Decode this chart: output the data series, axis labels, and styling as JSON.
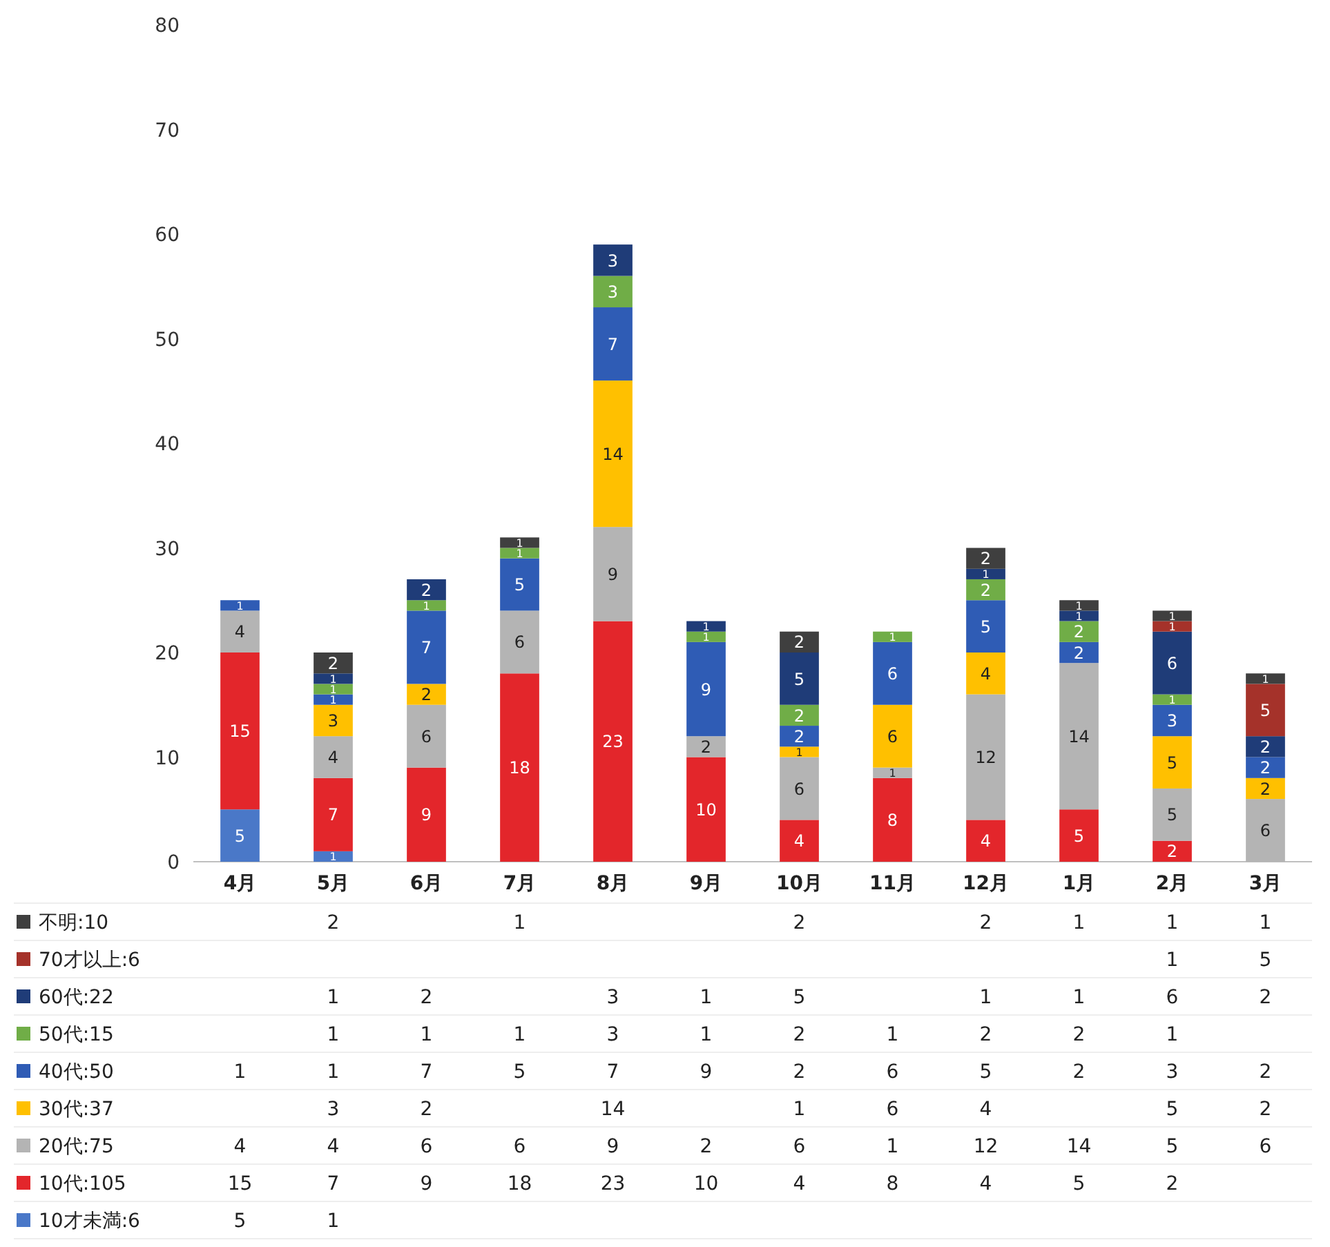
{
  "chart_data": [
    {
      "type": "bar",
      "stacked": true,
      "grid": false,
      "ylim": [
        0,
        80
      ],
      "yticks": [
        0,
        10,
        20,
        30,
        40,
        50,
        60,
        70,
        80
      ],
      "categories": [
        "4月",
        "5月",
        "6月",
        "7月",
        "8月",
        "9月",
        "10月",
        "11月",
        "12月",
        "1月",
        "2月",
        "3月"
      ],
      "series": [
        {
          "color": "#4a78c8",
          "values": [
            5,
            1,
            null,
            null,
            null,
            null,
            null,
            null,
            null,
            null,
            null,
            null
          ],
          "value_labels": [
            "5",
            "1",
            null,
            null,
            null,
            null,
            null,
            null,
            null,
            null,
            null,
            null
          ]
        },
        {
          "color": "#e3262b",
          "values": [
            15,
            7,
            9,
            18,
            23,
            10,
            4,
            8,
            4,
            5,
            2,
            null
          ],
          "value_labels": [
            "15",
            "7",
            "9",
            "18",
            "23",
            "10",
            "4",
            "8",
            "4",
            "5",
            "2",
            null
          ]
        },
        {
          "color": "#b4b4b4",
          "values": [
            4,
            4,
            6,
            6,
            9,
            2,
            6,
            1,
            12,
            14,
            5,
            6
          ],
          "value_labels": [
            "4",
            "4",
            "6",
            "6",
            "9",
            "2",
            "6",
            "1",
            "12",
            "14",
            "5",
            "6"
          ]
        },
        {
          "color": "#ffc000",
          "values": [
            null,
            3,
            2,
            null,
            14,
            null,
            1,
            6,
            4,
            null,
            5,
            2
          ],
          "value_labels": [
            null,
            "3",
            "2",
            null,
            "14",
            null,
            "1",
            "6",
            "4",
            null,
            "5",
            "2"
          ]
        },
        {
          "color": "#2f5cb5",
          "values": [
            1,
            1,
            7,
            5,
            7,
            9,
            2,
            6,
            5,
            2,
            3,
            2
          ],
          "value_labels": [
            "1",
            "1",
            "7",
            "5",
            "7",
            "9",
            "2",
            "6",
            "5",
            "2",
            "3",
            "2"
          ]
        },
        {
          "color": "#70ad47",
          "values": [
            null,
            1,
            1,
            1,
            3,
            1,
            2,
            1,
            2,
            2,
            1,
            null
          ],
          "value_labels": [
            null,
            "1",
            "1",
            "1",
            "3",
            "1",
            "2",
            "1",
            "2",
            "2",
            "1",
            null
          ]
        },
        {
          "color": "#1f3c78",
          "values": [
            null,
            1,
            2,
            null,
            3,
            1,
            5,
            null,
            1,
            1,
            6,
            2
          ],
          "value_labels": [
            null,
            "1",
            "2",
            null,
            "3",
            "1",
            "5",
            null,
            "1",
            "1",
            "6",
            "2"
          ]
        },
        {
          "color": "#a5322a",
          "values": [
            null,
            null,
            null,
            null,
            null,
            null,
            null,
            null,
            null,
            null,
            1,
            5
          ],
          "value_labels": [
            null,
            null,
            null,
            null,
            null,
            null,
            null,
            null,
            null,
            null,
            "1",
            "5"
          ]
        },
        {
          "color": "#3f3f3f",
          "values": [
            null,
            2,
            null,
            1,
            null,
            null,
            2,
            null,
            2,
            1,
            1,
            1
          ],
          "value_labels": [
            null,
            "2",
            null,
            "1",
            null,
            null,
            "2",
            null,
            "2",
            "1",
            "1",
            "1"
          ]
        }
      ]
    },
    {
      "type": "heatmap",
      "data_labels": true,
      "categories": [
        null,
        null,
        null,
        null,
        null,
        null,
        null,
        null,
        null,
        null,
        null,
        null
      ],
      "y_categories": [
        "不明:10",
        "70才以上:6",
        "60代:22",
        "50代:15",
        "40代:50",
        "30代:37",
        "20代:75",
        "10代:105",
        "10才未満:6"
      ],
      "cells": [
        [
          null,
          2,
          null,
          1,
          null,
          null,
          2,
          null,
          2,
          1,
          1,
          1
        ],
        [
          null,
          null,
          null,
          null,
          null,
          null,
          null,
          null,
          null,
          null,
          1,
          5
        ],
        [
          null,
          1,
          2,
          null,
          3,
          1,
          5,
          null,
          1,
          1,
          6,
          2
        ],
        [
          null,
          1,
          1,
          1,
          3,
          1,
          2,
          1,
          2,
          2,
          1,
          null
        ],
        [
          1,
          1,
          7,
          5,
          7,
          9,
          2,
          6,
          5,
          2,
          3,
          2
        ],
        [
          null,
          3,
          2,
          null,
          14,
          null,
          1,
          6,
          4,
          null,
          5,
          2
        ],
        [
          4,
          4,
          6,
          6,
          9,
          2,
          6,
          1,
          12,
          14,
          5,
          6
        ],
        [
          15,
          7,
          9,
          18,
          23,
          10,
          4,
          8,
          4,
          5,
          2,
          null
        ],
        [
          5,
          1,
          null,
          null,
          null,
          null,
          null,
          null,
          null,
          null,
          null,
          null
        ]
      ]
    }
  ]
}
